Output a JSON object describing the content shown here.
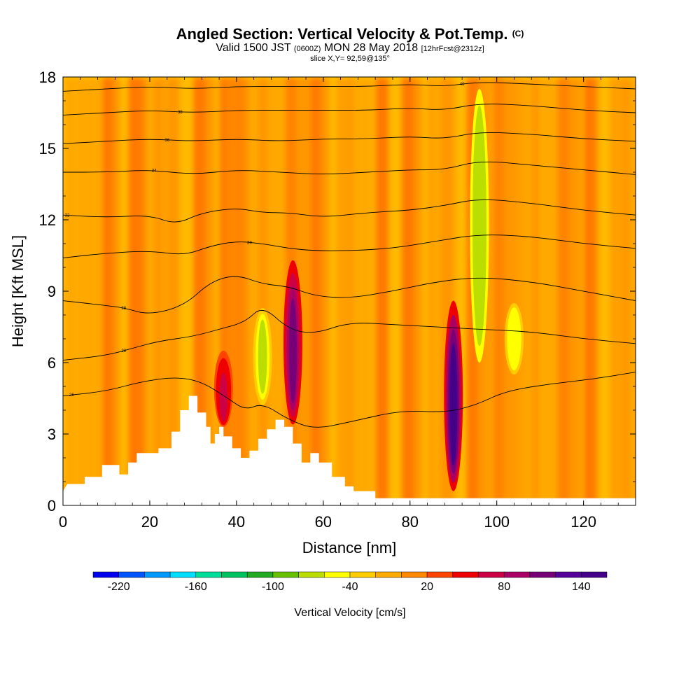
{
  "header": {
    "title_main": "Angled Section: Vertical Velocity & Pot.Temp.",
    "title_unit": "(C)",
    "valid_prefix": "Valid 1500 JST",
    "valid_zulu": "(0600Z)",
    "valid_date": "MON 28 May 2018",
    "valid_fcst": "[12hrFcst@2312z]",
    "slice": "slice X,Y= 92,59@135°"
  },
  "chart_data": {
    "type": "heatmap",
    "xlabel": "Distance [nm]",
    "ylabel": "Height [Kft MSL]",
    "xlim": [
      0,
      132
    ],
    "ylim": [
      0,
      18
    ],
    "xticks": [
      0,
      20,
      40,
      60,
      80,
      100,
      120
    ],
    "yticks": [
      0,
      3,
      6,
      9,
      12,
      15,
      18
    ],
    "colorbar": {
      "title": "Vertical Velocity [cm/s]",
      "tick_labels": [
        "-220",
        "-160",
        "-100",
        "-40",
        "20",
        "80",
        "140"
      ],
      "tick_values": [
        -220,
        -160,
        -100,
        -40,
        20,
        80,
        140
      ],
      "range": [
        -240,
        160
      ],
      "colors": [
        "#0000ee",
        "#0055ff",
        "#0099ff",
        "#00ddff",
        "#00dd99",
        "#00c060",
        "#22aa22",
        "#66c000",
        "#bbdd00",
        "#ffff00",
        "#ffcc00",
        "#ffaa00",
        "#ff8800",
        "#ff4400",
        "#ee0000",
        "#cc0044",
        "#aa0066",
        "#770077",
        "#550099",
        "#440088"
      ]
    },
    "updrafts": [
      {
        "x": 53,
        "y_bottom": 3.4,
        "y_top": 10.3,
        "peak": 110
      },
      {
        "x": 90,
        "y_bottom": 0.6,
        "y_top": 8.6,
        "peak": 150
      },
      {
        "x": 37,
        "y_bottom": 3.3,
        "y_top": 6.5,
        "peak": 70
      }
    ],
    "downdrafts": [
      {
        "x": 46,
        "y_bottom": 4.2,
        "y_top": 8.3,
        "peak": -70
      },
      {
        "x": 96,
        "y_bottom": 6.0,
        "y_top": 17.5,
        "peak": -80
      },
      {
        "x": 104,
        "y_bottom": 5.5,
        "y_top": 8.5,
        "peak": -50
      }
    ],
    "terrain": [
      [
        0,
        0.6
      ],
      [
        1,
        0.9
      ],
      [
        5,
        0.9
      ],
      [
        5,
        1.2
      ],
      [
        9,
        1.2
      ],
      [
        9,
        1.7
      ],
      [
        13,
        1.7
      ],
      [
        13,
        1.3
      ],
      [
        15,
        1.3
      ],
      [
        15,
        1.8
      ],
      [
        17,
        1.8
      ],
      [
        17,
        2.2
      ],
      [
        22,
        2.2
      ],
      [
        22,
        2.4
      ],
      [
        25,
        2.4
      ],
      [
        25,
        3.1
      ],
      [
        27,
        3.1
      ],
      [
        27,
        4.0
      ],
      [
        29,
        4.0
      ],
      [
        29,
        4.6
      ],
      [
        31,
        4.6
      ],
      [
        31,
        3.9
      ],
      [
        33,
        3.9
      ],
      [
        33,
        3.3
      ],
      [
        34,
        3.3
      ],
      [
        34,
        2.6
      ],
      [
        35,
        2.6
      ],
      [
        35,
        3.0
      ],
      [
        36,
        3.0
      ],
      [
        36,
        3.3
      ],
      [
        37,
        3.3
      ],
      [
        37,
        2.9
      ],
      [
        39,
        2.9
      ],
      [
        39,
        2.4
      ],
      [
        41,
        2.4
      ],
      [
        41,
        2.0
      ],
      [
        43,
        2.0
      ],
      [
        43,
        2.3
      ],
      [
        45,
        2.3
      ],
      [
        45,
        2.8
      ],
      [
        47,
        2.8
      ],
      [
        47,
        3.2
      ],
      [
        49,
        3.2
      ],
      [
        49,
        3.6
      ],
      [
        51,
        3.6
      ],
      [
        51,
        3.3
      ],
      [
        53,
        3.3
      ],
      [
        53,
        2.6
      ],
      [
        55,
        2.6
      ],
      [
        55,
        1.8
      ],
      [
        57,
        1.8
      ],
      [
        57,
        2.2
      ],
      [
        59,
        2.2
      ],
      [
        59,
        1.8
      ],
      [
        62,
        1.8
      ],
      [
        62,
        1.2
      ],
      [
        65,
        1.2
      ],
      [
        65,
        0.8
      ],
      [
        67,
        0.8
      ],
      [
        67,
        0.6
      ],
      [
        72,
        0.6
      ],
      [
        72,
        0.3
      ],
      [
        132,
        0.3
      ]
    ],
    "isentropes": [
      {
        "label": "26",
        "label_x": 2,
        "points": [
          [
            0,
            4.6
          ],
          [
            10,
            4.8
          ],
          [
            18,
            5.2
          ],
          [
            26,
            5.4
          ],
          [
            32,
            5.2
          ],
          [
            38,
            4.5
          ],
          [
            42,
            4.0
          ],
          [
            46,
            4.3
          ],
          [
            52,
            3.6
          ],
          [
            58,
            3.2
          ],
          [
            66,
            3.5
          ],
          [
            78,
            4.0
          ],
          [
            88,
            3.9
          ],
          [
            95,
            4.2
          ],
          [
            102,
            4.8
          ],
          [
            112,
            5.1
          ],
          [
            122,
            5.3
          ],
          [
            132,
            5.6
          ]
        ]
      },
      {
        "label": "28",
        "label_x": 14,
        "points": [
          [
            0,
            6.1
          ],
          [
            10,
            6.3
          ],
          [
            16,
            6.6
          ],
          [
            22,
            6.9
          ],
          [
            30,
            7.1
          ],
          [
            36,
            7.4
          ],
          [
            42,
            7.7
          ],
          [
            46,
            8.4
          ],
          [
            52,
            7.4
          ],
          [
            58,
            7.2
          ],
          [
            66,
            7.7
          ],
          [
            76,
            7.6
          ],
          [
            86,
            7.5
          ],
          [
            96,
            7.4
          ],
          [
            108,
            7.3
          ],
          [
            120,
            7.0
          ],
          [
            132,
            6.8
          ]
        ]
      },
      {
        "label": "28",
        "label_x": 14,
        "points": [
          [
            0,
            8.6
          ],
          [
            10,
            8.4
          ],
          [
            14,
            8.3
          ],
          [
            20,
            8.0
          ],
          [
            28,
            8.4
          ],
          [
            34,
            9.4
          ],
          [
            40,
            9.7
          ],
          [
            46,
            9.3
          ],
          [
            52,
            9.2
          ],
          [
            58,
            8.8
          ],
          [
            66,
            8.7
          ],
          [
            76,
            9.0
          ],
          [
            86,
            9.4
          ],
          [
            96,
            9.6
          ],
          [
            108,
            9.4
          ],
          [
            120,
            9.0
          ],
          [
            132,
            8.6
          ]
        ]
      },
      {
        "label": "30",
        "label_x": 43,
        "points": [
          [
            0,
            10.4
          ],
          [
            10,
            10.6
          ],
          [
            20,
            10.7
          ],
          [
            28,
            10.5
          ],
          [
            34,
            10.9
          ],
          [
            40,
            11.1
          ],
          [
            46,
            11.0
          ],
          [
            52,
            10.8
          ],
          [
            58,
            10.7
          ],
          [
            66,
            10.7
          ],
          [
            76,
            10.8
          ],
          [
            86,
            11.1
          ],
          [
            96,
            11.4
          ],
          [
            108,
            11.3
          ],
          [
            120,
            11.0
          ],
          [
            132,
            10.8
          ]
        ]
      },
      {
        "label": "32",
        "label_x": 1,
        "points": [
          [
            0,
            12.2
          ],
          [
            10,
            12.1
          ],
          [
            20,
            12.2
          ],
          [
            26,
            11.8
          ],
          [
            32,
            12.3
          ],
          [
            40,
            12.5
          ],
          [
            46,
            12.3
          ],
          [
            52,
            12.3
          ],
          [
            60,
            12.1
          ],
          [
            70,
            12.3
          ],
          [
            80,
            12.4
          ],
          [
            88,
            12.6
          ],
          [
            96,
            12.9
          ],
          [
            108,
            12.7
          ],
          [
            120,
            12.4
          ],
          [
            132,
            12.2
          ]
        ]
      },
      {
        "label": "34",
        "label_x": 21,
        "points": [
          [
            0,
            14.0
          ],
          [
            10,
            14.0
          ],
          [
            20,
            14.1
          ],
          [
            30,
            13.9
          ],
          [
            40,
            14.1
          ],
          [
            50,
            14.0
          ],
          [
            60,
            13.9
          ],
          [
            70,
            14.0
          ],
          [
            80,
            14.1
          ],
          [
            88,
            14.1
          ],
          [
            96,
            14.5
          ],
          [
            108,
            14.3
          ],
          [
            120,
            14.1
          ],
          [
            132,
            13.9
          ]
        ]
      },
      {
        "label": "36",
        "label_x": 24,
        "points": [
          [
            0,
            15.2
          ],
          [
            10,
            15.3
          ],
          [
            20,
            15.4
          ],
          [
            30,
            15.3
          ],
          [
            40,
            15.4
          ],
          [
            50,
            15.3
          ],
          [
            60,
            15.4
          ],
          [
            70,
            15.4
          ],
          [
            80,
            15.5
          ],
          [
            88,
            15.4
          ],
          [
            96,
            15.7
          ],
          [
            108,
            15.6
          ],
          [
            120,
            15.4
          ],
          [
            132,
            15.3
          ]
        ]
      },
      {
        "label": "38",
        "label_x": 27,
        "points": [
          [
            0,
            16.4
          ],
          [
            10,
            16.5
          ],
          [
            20,
            16.6
          ],
          [
            30,
            16.5
          ],
          [
            40,
            16.6
          ],
          [
            50,
            16.6
          ],
          [
            60,
            16.6
          ],
          [
            70,
            16.6
          ],
          [
            80,
            16.7
          ],
          [
            88,
            16.6
          ],
          [
            96,
            16.9
          ],
          [
            108,
            16.8
          ],
          [
            120,
            16.6
          ],
          [
            132,
            16.5
          ]
        ]
      },
      {
        "label": "40",
        "label_x": 92,
        "points": [
          [
            0,
            17.4
          ],
          [
            10,
            17.5
          ],
          [
            20,
            17.6
          ],
          [
            30,
            17.5
          ],
          [
            40,
            17.6
          ],
          [
            50,
            17.6
          ],
          [
            60,
            17.6
          ],
          [
            70,
            17.6
          ],
          [
            80,
            17.7
          ],
          [
            88,
            17.6
          ],
          [
            96,
            17.8
          ],
          [
            108,
            17.7
          ],
          [
            120,
            17.6
          ],
          [
            132,
            17.5
          ]
        ]
      }
    ],
    "colors": {
      "background_field": "#ffd000",
      "terrain": "#ffffff",
      "contour": "#000000"
    }
  }
}
